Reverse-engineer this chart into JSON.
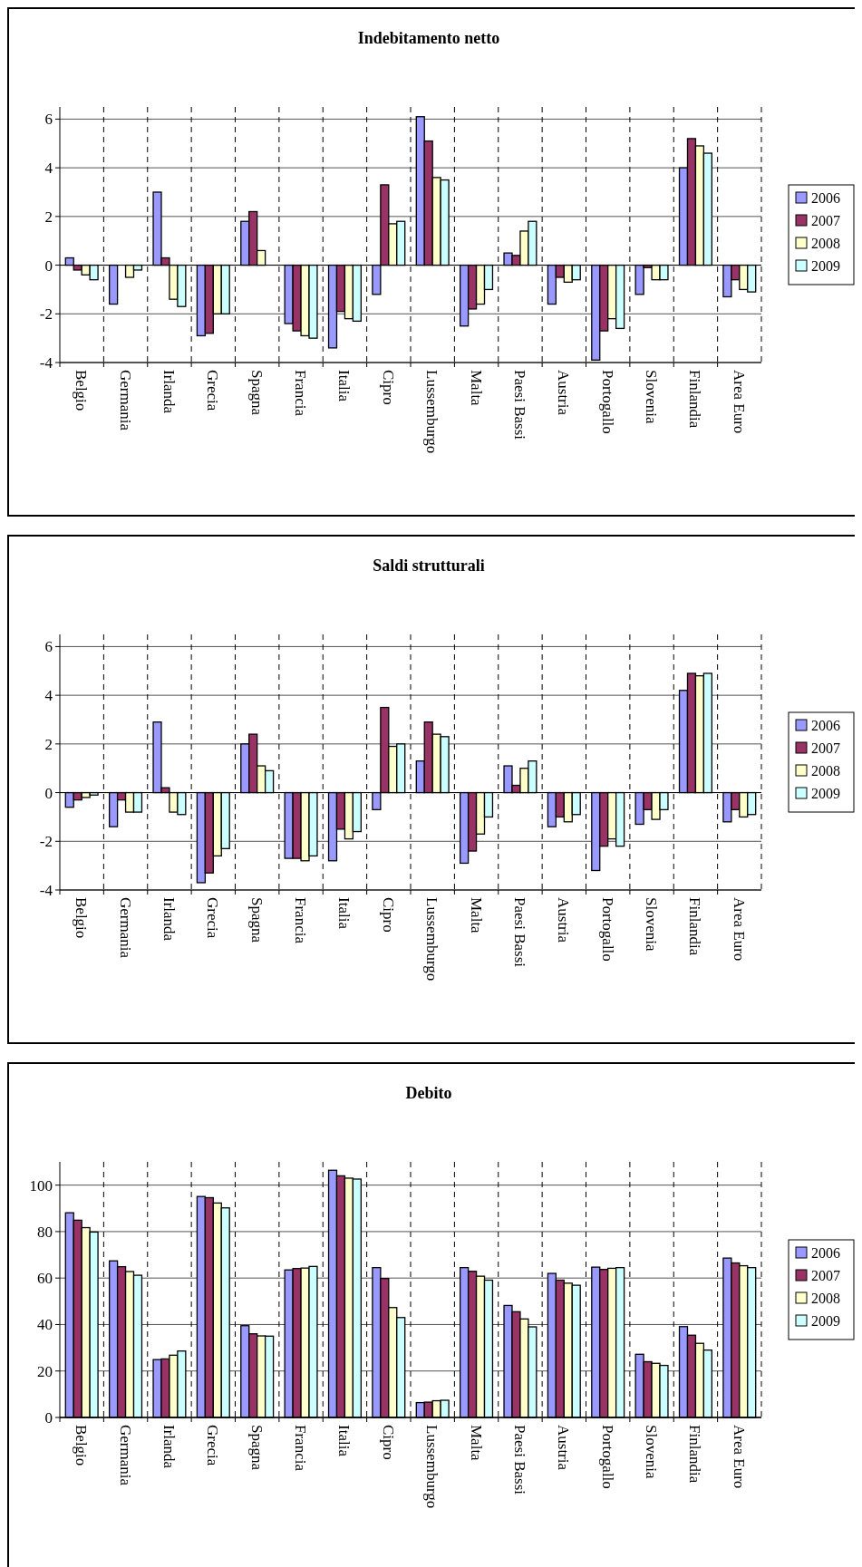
{
  "chart_data": [
    {
      "type": "bar",
      "title": "Indebitamento netto",
      "categories": [
        "Belgio",
        "Germania",
        "Irlanda",
        "Grecia",
        "Spagna",
        "Francia",
        "Italia",
        "Cipro",
        "Lussemburgo",
        "Malta",
        "Paesi Bassi",
        "Austria",
        "Portogallo",
        "Slovenia",
        "Finlandia",
        "Area Euro"
      ],
      "series": [
        {
          "name": "2006",
          "color": "#9999ff",
          "values": [
            0.3,
            -1.6,
            3.0,
            -2.9,
            1.8,
            -2.4,
            -3.4,
            -1.2,
            6.1,
            -2.5,
            0.5,
            -1.6,
            -3.9,
            -1.2,
            4.0,
            -1.3
          ]
        },
        {
          "name": "2007",
          "color": "#993366",
          "values": [
            -0.2,
            0,
            0.3,
            -2.8,
            2.2,
            -2.7,
            -1.9,
            3.3,
            5.1,
            -1.8,
            0.4,
            -0.5,
            -2.7,
            -0.1,
            5.2,
            -0.6
          ]
        },
        {
          "name": "2008",
          "color": "#ffffcc",
          "values": [
            -0.4,
            -0.5,
            -1.4,
            -2.0,
            0.6,
            -2.9,
            -2.2,
            1.7,
            3.6,
            -1.6,
            1.4,
            -0.7,
            -2.2,
            -0.6,
            4.9,
            -1.0
          ]
        },
        {
          "name": "2009",
          "color": "#ccffff",
          "values": [
            -0.6,
            -0.2,
            -1.7,
            -2.0,
            0,
            -3.0,
            -2.3,
            1.8,
            3.5,
            -1.0,
            1.8,
            -0.6,
            -2.6,
            -0.6,
            4.6,
            -1.1
          ]
        }
      ],
      "ylim": [
        -4,
        6.5
      ],
      "yticks": [
        -4,
        -2,
        0,
        2,
        4,
        6
      ],
      "grid": true,
      "legend": "right"
    },
    {
      "type": "bar",
      "title": "Saldi strutturali",
      "categories": [
        "Belgio",
        "Germania",
        "Irlanda",
        "Grecia",
        "Spagna",
        "Francia",
        "Italia",
        "Cipro",
        "Lussemburgo",
        "Malta",
        "Paesi Bassi",
        "Austria",
        "Portogallo",
        "Slovenia",
        "Finlandia",
        "Area Euro"
      ],
      "series": [
        {
          "name": "2006",
          "color": "#9999ff",
          "values": [
            -0.6,
            -1.4,
            2.9,
            -3.7,
            2.0,
            -2.7,
            -2.8,
            -0.7,
            1.3,
            -2.9,
            1.1,
            -1.4,
            -3.2,
            -1.3,
            4.2,
            -1.2
          ]
        },
        {
          "name": "2007",
          "color": "#993366",
          "values": [
            -0.3,
            -0.3,
            0.2,
            -3.3,
            2.4,
            -2.7,
            -1.5,
            3.5,
            2.9,
            -2.4,
            0.3,
            -1.0,
            -2.2,
            -0.7,
            4.9,
            -0.7
          ]
        },
        {
          "name": "2008",
          "color": "#ffffcc",
          "values": [
            -0.2,
            -0.8,
            -0.8,
            -2.6,
            1.1,
            -2.8,
            -1.9,
            1.9,
            2.4,
            -1.7,
            1.0,
            -1.2,
            -1.9,
            -1.1,
            4.8,
            -1.0
          ]
        },
        {
          "name": "2009",
          "color": "#ccffff",
          "values": [
            -0.1,
            -0.8,
            -0.9,
            -2.3,
            0.9,
            -2.6,
            -1.6,
            2.0,
            2.3,
            -1.0,
            1.3,
            -0.9,
            -2.2,
            -0.7,
            4.9,
            -0.9
          ]
        }
      ],
      "ylim": [
        -4,
        6.5
      ],
      "yticks": [
        -4,
        -2,
        0,
        2,
        4,
        6
      ],
      "grid": true,
      "legend": "right"
    },
    {
      "type": "bar",
      "title": "Debito",
      "categories": [
        "Belgio",
        "Germania",
        "Irlanda",
        "Grecia",
        "Spagna",
        "Francia",
        "Italia",
        "Cipro",
        "Lussemburgo",
        "Malta",
        "Paesi Bassi",
        "Austria",
        "Portogallo",
        "Slovenia",
        "Finlandia",
        "Area Euro"
      ],
      "series": [
        {
          "name": "2006",
          "color": "#9999ff",
          "values": [
            88.1,
            67.4,
            24.9,
            95.1,
            39.5,
            63.5,
            106.4,
            64.5,
            6.4,
            64.5,
            48.2,
            62.0,
            64.7,
            27.2,
            39.1,
            68.6
          ]
        },
        {
          "name": "2007",
          "color": "#993366",
          "values": [
            84.9,
            64.9,
            25.2,
            94.6,
            36.0,
            64.1,
            104.0,
            59.8,
            6.6,
            62.9,
            45.5,
            59.1,
            63.7,
            24.0,
            35.4,
            66.5
          ]
        },
        {
          "name": "2008",
          "color": "#ffffcc",
          "values": [
            81.7,
            62.8,
            26.8,
            92.3,
            35.1,
            64.3,
            103.0,
            47.3,
            7.2,
            60.8,
            42.4,
            57.8,
            64.2,
            23.3,
            31.9,
            65.3
          ]
        },
        {
          "name": "2009",
          "color": "#ccffff",
          "values": [
            79.8,
            61.2,
            28.6,
            90.2,
            35.0,
            65.0,
            102.6,
            43.0,
            7.4,
            59.1,
            39.0,
            56.9,
            64.5,
            22.4,
            29.0,
            64.5
          ]
        }
      ],
      "ylim": [
        0,
        110
      ],
      "yticks": [
        0,
        20,
        40,
        60,
        80,
        100
      ],
      "grid": true,
      "legend": "right"
    }
  ]
}
